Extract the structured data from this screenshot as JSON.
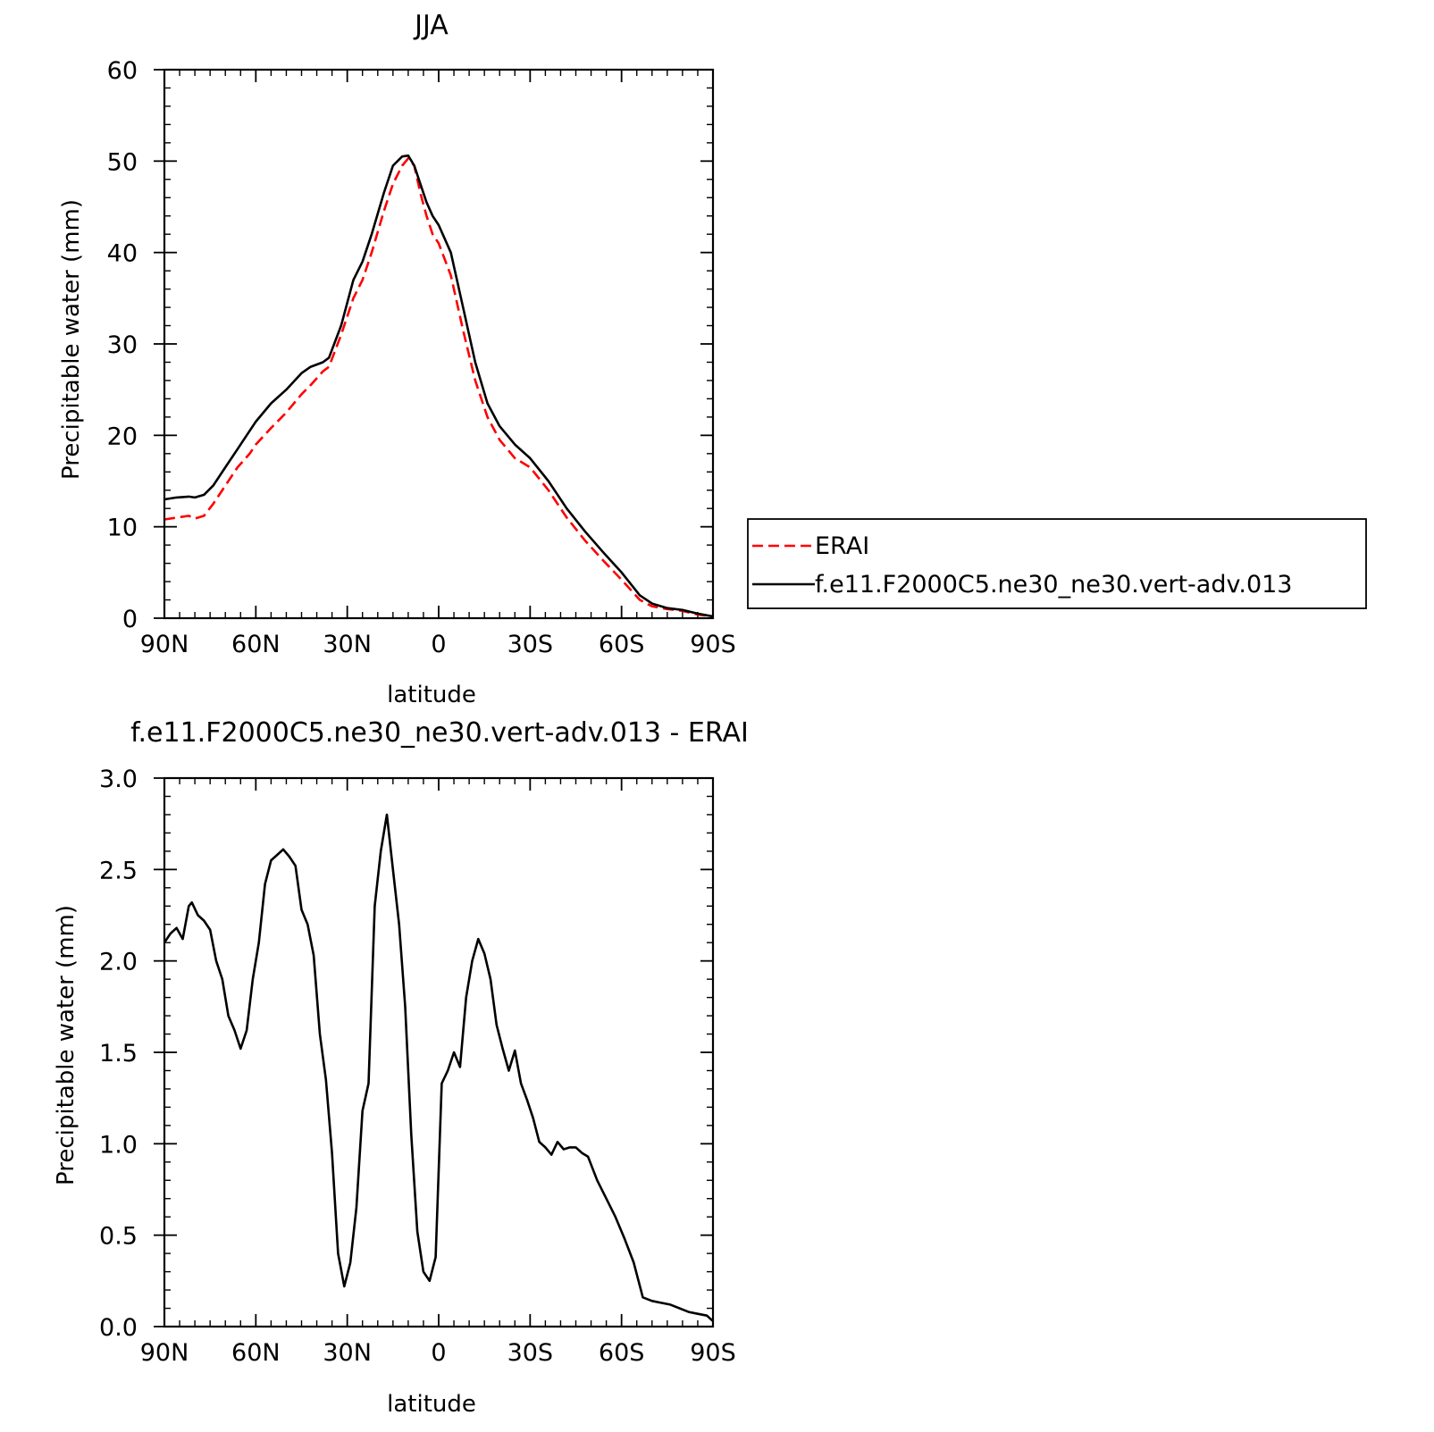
{
  "chart_data": [
    {
      "type": "line",
      "title": "JJA",
      "xlabel": "latitude",
      "ylabel": "Precipitable water (mm)",
      "xlim": [
        90,
        -90
      ],
      "ylim": [
        0,
        60
      ],
      "x_ticks": [
        90,
        60,
        30,
        0,
        -30,
        -60,
        -90
      ],
      "x_tick_labels": [
        "90N",
        "60N",
        "30N",
        "0",
        "30S",
        "60S",
        "90S"
      ],
      "y_ticks": [
        0,
        10,
        20,
        30,
        40,
        50,
        60
      ],
      "y_tick_labels": [
        "0",
        "10",
        "20",
        "30",
        "40",
        "50",
        "60"
      ],
      "grid": false,
      "legend_placement": "outside-right",
      "series": [
        {
          "name": "ERAI",
          "color": "#ff0000",
          "style": "dashed",
          "x": [
            90,
            86,
            82,
            80,
            77,
            74,
            70,
            66,
            62,
            60,
            55,
            50,
            45,
            42,
            38,
            36,
            32,
            28,
            25,
            22,
            18,
            15,
            12,
            10,
            8,
            6,
            4,
            2,
            0,
            -4,
            -8,
            -12,
            -16,
            -20,
            -25,
            -30,
            -36,
            -42,
            -48,
            -54,
            -60,
            -66,
            -70,
            -75,
            -80,
            -85,
            -90
          ],
          "y": [
            10.8,
            11.0,
            11.2,
            10.9,
            11.2,
            12.5,
            14.5,
            16.5,
            18.0,
            19.0,
            20.8,
            22.5,
            24.5,
            25.5,
            27.0,
            27.5,
            31.0,
            35.0,
            37.0,
            40.0,
            44.5,
            47.5,
            49.5,
            50.3,
            49.5,
            46.5,
            44.0,
            42.0,
            41.0,
            37.5,
            31.5,
            26.0,
            22.0,
            19.5,
            17.5,
            16.5,
            14.0,
            11.0,
            8.5,
            6.3,
            4.2,
            2.0,
            1.3,
            1.0,
            0.8,
            0.4,
            0.2
          ]
        },
        {
          "name": "f.e11.F2000C5.ne30_ne30.vert-adv.013",
          "color": "#000000",
          "style": "solid",
          "x": [
            90,
            86,
            82,
            80,
            77,
            74,
            70,
            66,
            62,
            60,
            55,
            50,
            45,
            42,
            38,
            36,
            32,
            28,
            25,
            22,
            18,
            15,
            12,
            10,
            8,
            6,
            4,
            2,
            0,
            -4,
            -8,
            -12,
            -16,
            -20,
            -25,
            -30,
            -36,
            -42,
            -48,
            -54,
            -60,
            -66,
            -70,
            -75,
            -80,
            -85,
            -90
          ],
          "y": [
            13.0,
            13.2,
            13.3,
            13.2,
            13.5,
            14.5,
            16.5,
            18.5,
            20.5,
            21.5,
            23.5,
            25.0,
            26.8,
            27.5,
            28.0,
            28.5,
            32.0,
            37.0,
            39.0,
            42.0,
            46.5,
            49.5,
            50.5,
            50.6,
            49.5,
            47.5,
            45.5,
            44.0,
            43.0,
            40.0,
            34.0,
            28.0,
            23.5,
            21.0,
            19.0,
            17.5,
            15.0,
            12.0,
            9.5,
            7.2,
            5.0,
            2.5,
            1.6,
            1.1,
            0.9,
            0.5,
            0.2
          ]
        }
      ],
      "legend": [
        "ERAI",
        "f.e11.F2000C5.ne30_ne30.vert-adv.013"
      ]
    },
    {
      "type": "line",
      "title": "f.e11.F2000C5.ne30_ne30.vert-adv.013 - ERAI",
      "xlabel": "latitude",
      "ylabel": "Precipitable water (mm)",
      "xlim": [
        90,
        -90
      ],
      "ylim": [
        0,
        3
      ],
      "x_ticks": [
        90,
        60,
        30,
        0,
        -30,
        -60,
        -90
      ],
      "x_tick_labels": [
        "90N",
        "60N",
        "30N",
        "0",
        "30S",
        "60S",
        "90S"
      ],
      "y_ticks": [
        0,
        0.5,
        1,
        1.5,
        2,
        2.5,
        3
      ],
      "y_tick_labels": [
        "0.0",
        "0.5",
        "1.0",
        "1.5",
        "2.0",
        "2.5",
        "3.0"
      ],
      "grid": false,
      "series": [
        {
          "color": "#000000",
          "style": "solid",
          "x": [
            90,
            88,
            86,
            84,
            82,
            81,
            79,
            77,
            75,
            73,
            71,
            69,
            67,
            65,
            63,
            61,
            59,
            57,
            55,
            53,
            51,
            49,
            47,
            45,
            43,
            41,
            39,
            37,
            35,
            33,
            31,
            29,
            27,
            25,
            23,
            21,
            19,
            17,
            15,
            13,
            11,
            9,
            7,
            5,
            3,
            1,
            -1,
            -3,
            -5,
            -7,
            -9,
            -11,
            -13,
            -15,
            -17,
            -19,
            -21,
            -23,
            -25,
            -27,
            -29,
            -31,
            -33,
            -35,
            -37,
            -39,
            -41,
            -43,
            -45,
            -47,
            -49,
            -52,
            -55,
            -58,
            -61,
            -64,
            -67,
            -70,
            -73,
            -76,
            -79,
            -82,
            -85,
            -88,
            -90
          ],
          "y": [
            2.1,
            2.15,
            2.18,
            2.12,
            2.3,
            2.32,
            2.25,
            2.22,
            2.17,
            2.0,
            1.9,
            1.7,
            1.62,
            1.52,
            1.62,
            1.9,
            2.1,
            2.42,
            2.55,
            2.58,
            2.61,
            2.57,
            2.52,
            2.28,
            2.2,
            2.03,
            1.6,
            1.35,
            0.95,
            0.4,
            0.22,
            0.35,
            0.65,
            1.18,
            1.33,
            2.3,
            2.6,
            2.8,
            2.5,
            2.2,
            1.75,
            1.05,
            0.52,
            0.3,
            0.25,
            0.38,
            1.33,
            1.4,
            1.5,
            1.42,
            1.8,
            2.0,
            2.12,
            2.04,
            1.9,
            1.65,
            1.52,
            1.4,
            1.51,
            1.33,
            1.24,
            1.14,
            1.01,
            0.98,
            0.94,
            1.01,
            0.97,
            0.98,
            0.98,
            0.95,
            0.93,
            0.8,
            0.7,
            0.6,
            0.48,
            0.35,
            0.16,
            0.14,
            0.13,
            0.12,
            0.1,
            0.08,
            0.07,
            0.06,
            0.03
          ]
        }
      ]
    }
  ]
}
